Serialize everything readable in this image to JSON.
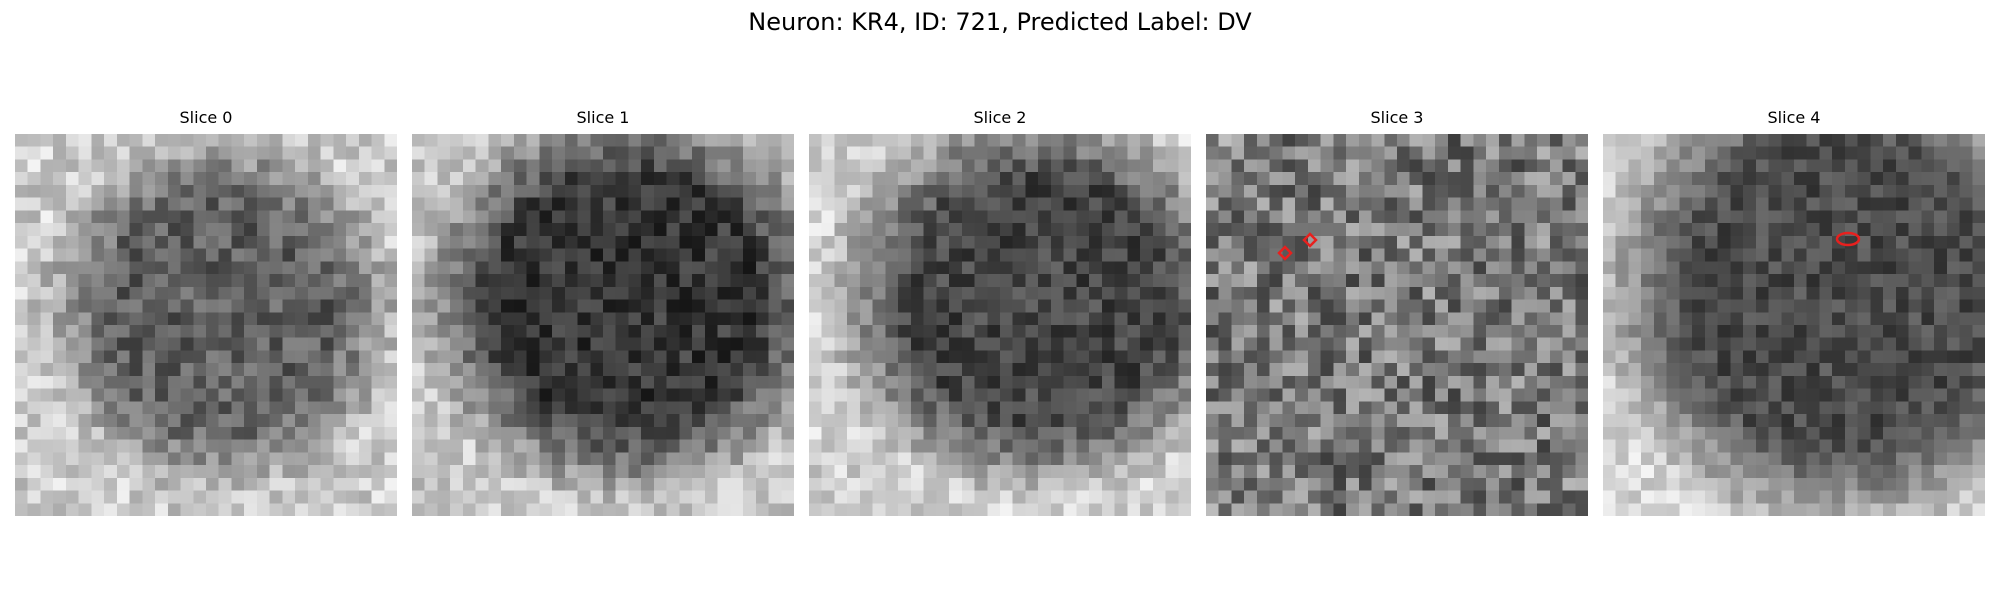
{
  "figure": {
    "title": "Neuron: KR4, ID: 721, Predicted Label: DV"
  },
  "panels": [
    {
      "title": "Slice 0",
      "tone": "medium-dark blob on light background",
      "markers": []
    },
    {
      "title": "Slice 1",
      "tone": "dark blob on light background",
      "markers": []
    },
    {
      "title": "Slice 2",
      "tone": "dark blob on light background",
      "markers": []
    },
    {
      "title": "Slice 3",
      "tone": "noisy grey field",
      "markers": [
        "red diamond marker",
        "red diamond marker"
      ]
    },
    {
      "title": "Slice 4",
      "tone": "dark region with light corners",
      "markers": [
        "red ellipse marker"
      ]
    }
  ],
  "colors": {
    "marker": "#e8201e",
    "background": "#ffffff"
  }
}
